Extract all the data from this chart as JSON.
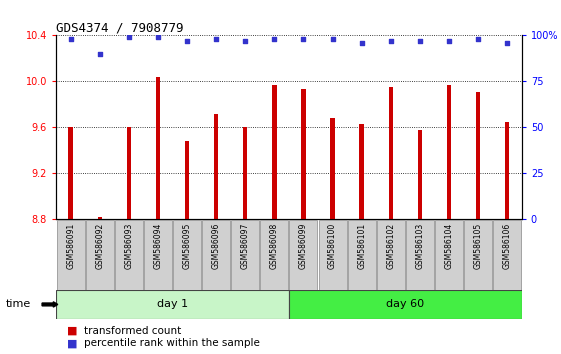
{
  "title": "GDS4374 / 7908779",
  "samples": [
    "GSM586091",
    "GSM586092",
    "GSM586093",
    "GSM586094",
    "GSM586095",
    "GSM586096",
    "GSM586097",
    "GSM586098",
    "GSM586099",
    "GSM586100",
    "GSM586101",
    "GSM586102",
    "GSM586103",
    "GSM586104",
    "GSM586105",
    "GSM586106"
  ],
  "bar_values": [
    9.6,
    8.82,
    9.6,
    10.04,
    9.48,
    9.72,
    9.6,
    9.97,
    9.93,
    9.68,
    9.63,
    9.95,
    9.58,
    9.97,
    9.91,
    9.65
  ],
  "blue_dot_values": [
    98,
    90,
    99,
    99,
    97,
    98,
    97,
    98,
    98,
    98,
    96,
    97,
    97,
    97,
    98,
    96
  ],
  "bar_color": "#cc0000",
  "dot_color": "#3333cc",
  "ylim_left": [
    8.8,
    10.4
  ],
  "ylim_right": [
    0,
    100
  ],
  "yticks_left": [
    8.8,
    9.2,
    9.6,
    10.0,
    10.4
  ],
  "yticks_right": [
    0,
    25,
    50,
    75,
    100
  ],
  "ytick_labels_right": [
    "0",
    "25",
    "50",
    "75",
    "100%"
  ],
  "day1_color": "#c8f5c8",
  "day60_color": "#44ee44",
  "xlabel": "time",
  "bar_width": 0.15,
  "legend_red": "transformed count",
  "legend_blue": "percentile rank within the sample",
  "grid_color": "#000000",
  "background_color": "#ffffff",
  "plot_bg_color": "#ffffff",
  "tick_box_color": "#d0d0d0",
  "n_day1": 8,
  "n_day60": 8
}
